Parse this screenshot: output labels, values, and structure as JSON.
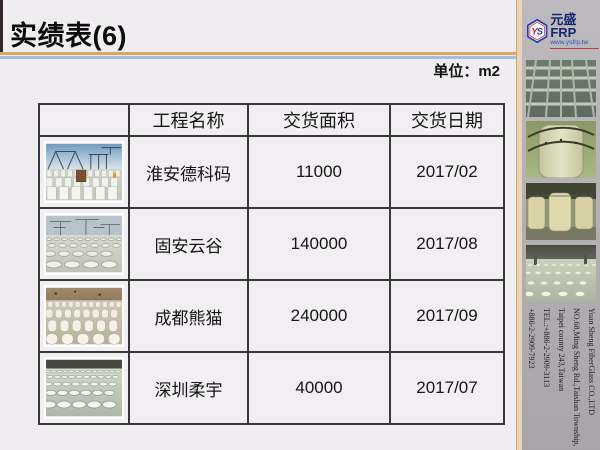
{
  "slide": {
    "title": "实绩表(6)",
    "unit_label": "单位：m2"
  },
  "table": {
    "headers": [
      "",
      "工程名称",
      "交货面积",
      "交货日期"
    ],
    "rows": [
      {
        "project": "淮安德科码",
        "area": "11000",
        "date": "2017/02"
      },
      {
        "project": "固安云谷",
        "area": "140000",
        "date": "2017/08"
      },
      {
        "project": "成都熊猫",
        "area": "240000",
        "date": "2017/09"
      },
      {
        "project": "深圳柔宇",
        "area": "40000",
        "date": "2017/07"
      }
    ]
  },
  "sidebar": {
    "logo": {
      "monogram_y": "Y",
      "monogram_s": "S",
      "brand": "元盛FRP",
      "website": "www.ysfrp.tw"
    },
    "company_lines": [
      "Yuan Sheng FiberGlass CO.,LTD",
      "NO.68,Ming Sheng Rd.,Taishan Township,",
      "Taipei county 243,Taiwan",
      "TEL.:+886-2-2909-3113",
      "+886-2-2909-7923"
    ]
  },
  "colors": {
    "divider_orange": "#d9a465",
    "divider_blue": "#a4bcde",
    "sidebar_strip": "#ecd3b5",
    "logo_navy": "#14266e",
    "logo_red": "#cc2233",
    "link_blue": "#2050c0"
  }
}
